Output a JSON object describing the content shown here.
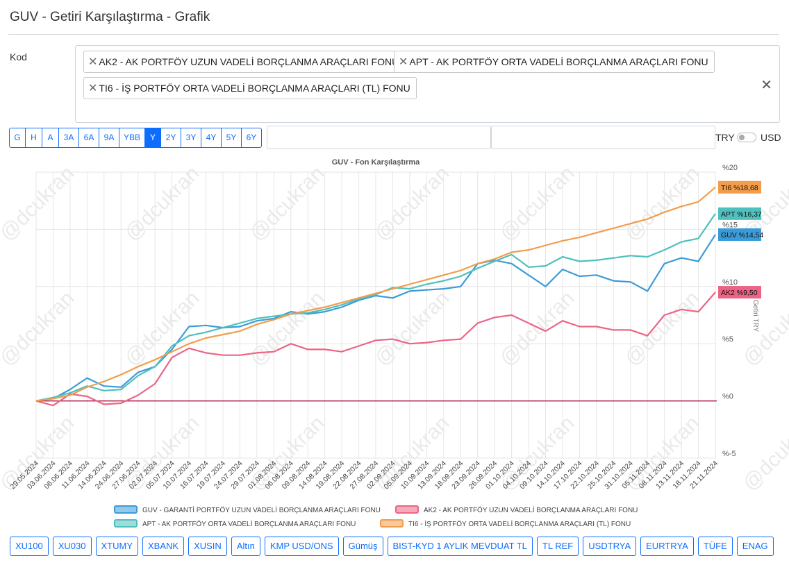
{
  "page": {
    "title": "GUV - Getiri Karşılaştırma - Grafik"
  },
  "kod": {
    "label": "Kod",
    "chips": [
      "AK2 - AK PORTFÖY UZUN VADELİ BORÇLANMA ARAÇLARI FONU",
      "APT - AK PORTFÖY ORTA VADELİ BORÇLANMA ARAÇLARI FONU",
      "TI6 - İŞ PORTFÖY ORTA VADELİ BORÇLANMA ARAÇLARI (TL) FONU"
    ],
    "chip_remove_glyph": "✕",
    "clear_glyph": "✕"
  },
  "ranges": {
    "items": [
      "G",
      "H",
      "A",
      "3A",
      "6A",
      "9A",
      "YBB",
      "Y",
      "2Y",
      "3Y",
      "4Y",
      "5Y",
      "6Y"
    ],
    "active": "Y"
  },
  "currency": {
    "left": "TRY",
    "right": "USD",
    "selected": "TRY"
  },
  "indicators": [
    "XU100",
    "XU030",
    "XTUMY",
    "XBANK",
    "XUSIN",
    "Altın",
    "KMP USD/ONS",
    "Gümüş",
    "BIST-KYD 1 AYLIK MEVDUAT TL",
    "TL REF",
    "USDTRYA",
    "EURTRYA",
    "TÜFE",
    "ENAG"
  ],
  "watermark": "@dcukran",
  "colors": {
    "GUV": "#3b9bd8",
    "AK2": "#ec6485",
    "APT": "#4fc0bd",
    "TI6": "#f29d4b",
    "zero_line": "#b0174b",
    "primary": "#0d6efd",
    "grid": "#e6e6e6"
  },
  "chart_data": {
    "type": "line",
    "title": "GUV - Fon Karşılaştırma",
    "ylabel": "Getiri TRY",
    "ylim": [
      -5,
      20
    ],
    "yticks": [
      -5,
      0,
      5,
      10,
      15,
      20
    ],
    "ytick_labels": [
      "%-5",
      "%0",
      "%5",
      "%10",
      "%15",
      "%20"
    ],
    "x_labels": [
      "29.05.2024",
      "03.06.2024",
      "06.06.2024",
      "11.06.2024",
      "14.06.2024",
      "24.06.2024",
      "27.06.2024",
      "02.07.2024",
      "05.07.2024",
      "10.07.2024",
      "16.07.2024",
      "19.07.2024",
      "24.07.2024",
      "29.07.2024",
      "01.08.2024",
      "06.08.2024",
      "09.08.2024",
      "14.08.2024",
      "19.08.2024",
      "22.08.2024",
      "27.08.2024",
      "02.09.2024",
      "05.09.2024",
      "10.09.2024",
      "13.09.2024",
      "18.09.2024",
      "23.09.2024",
      "26.09.2024",
      "01.10.2024",
      "04.10.2024",
      "09.10.2024",
      "14.10.2024",
      "17.10.2024",
      "22.10.2024",
      "25.10.2024",
      "31.10.2024",
      "05.11.2024",
      "08.11.2024",
      "13.11.2024",
      "18.11.2024",
      "21.11.2024"
    ],
    "series": [
      {
        "key": "GUV",
        "name": "GUV - GARANTİ PORTFÖY UZUN VADELİ BORÇLANMA ARAÇLARI FONU",
        "end_label": "GUV %14,54",
        "values": [
          0,
          0.2,
          1.0,
          2.0,
          1.3,
          1.2,
          2.5,
          3.0,
          4.5,
          6.5,
          6.6,
          6.4,
          6.5,
          7.0,
          7.2,
          7.8,
          7.6,
          7.8,
          8.2,
          8.8,
          9.2,
          9.0,
          9.6,
          9.7,
          9.8,
          10.0,
          12.0,
          12.3,
          12.0,
          11.0,
          10.0,
          11.5,
          10.9,
          11.0,
          10.5,
          10.4,
          9.6,
          12.0,
          12.5,
          12.2,
          14.54
        ]
      },
      {
        "key": "AK2",
        "name": "AK2 - AK PORTFÖY UZUN VADELİ BORÇLANMA ARAÇLARI FONU",
        "end_label": "AK2 %9,50",
        "values": [
          0,
          -0.4,
          0.6,
          0.4,
          -0.3,
          -0.2,
          0.5,
          1.5,
          3.8,
          4.6,
          4.2,
          4.0,
          4.0,
          4.2,
          4.3,
          5.0,
          4.5,
          4.5,
          4.3,
          4.8,
          5.3,
          5.4,
          5.0,
          5.1,
          5.3,
          5.4,
          6.8,
          7.3,
          7.5,
          6.8,
          6.1,
          7.0,
          6.5,
          6.5,
          6.2,
          6.2,
          5.7,
          7.5,
          8.0,
          7.8,
          9.5
        ]
      },
      {
        "key": "APT",
        "name": "APT - AK PORTFÖY ORTA VADELİ BORÇLANMA ARAÇLARI FONU",
        "end_label": "APT %16,37",
        "values": [
          0,
          0.3,
          0.7,
          1.3,
          0.9,
          1.0,
          2.2,
          3.0,
          4.8,
          5.7,
          6.0,
          6.4,
          6.8,
          7.2,
          7.4,
          7.6,
          7.7,
          8.0,
          8.4,
          8.9,
          9.3,
          9.9,
          9.8,
          10.2,
          10.5,
          10.9,
          11.6,
          12.2,
          12.8,
          11.7,
          11.8,
          12.6,
          12.2,
          12.3,
          12.5,
          12.7,
          12.6,
          13.2,
          13.9,
          14.2,
          16.37
        ]
      },
      {
        "key": "TI6",
        "name": "TI6 - İŞ PORTFÖY ORTA VADELİ BORÇLANMA ARAÇLARI (TL) FONU",
        "end_label": "TI6 %18,68",
        "values": [
          0,
          0.2,
          0.5,
          1.2,
          1.7,
          2.3,
          3.0,
          3.6,
          4.3,
          5.0,
          5.5,
          5.8,
          6.1,
          6.7,
          7.1,
          7.6,
          7.9,
          8.2,
          8.6,
          9.0,
          9.4,
          9.8,
          10.2,
          10.6,
          11.0,
          11.4,
          12.0,
          12.4,
          13.0,
          13.2,
          13.6,
          14.0,
          14.3,
          14.7,
          15.1,
          15.5,
          15.9,
          16.5,
          17.0,
          17.4,
          18.68
        ]
      }
    ]
  }
}
